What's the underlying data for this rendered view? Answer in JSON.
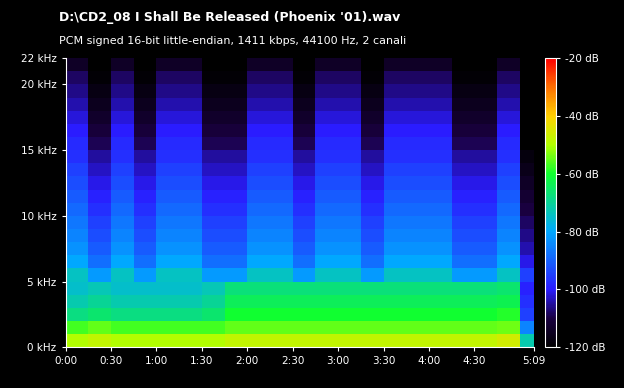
{
  "chart_data": {
    "type": "heatmap",
    "title": "D:\\CD2_08 I Shall Be Released (Phoenix '01).wav",
    "subtitle": "PCM signed 16-bit little-endian, 1411 kbps, 44100 Hz, 2 canali",
    "xlim": [
      0,
      309
    ],
    "xticks": [
      {
        "value": 0,
        "label": "0:00"
      },
      {
        "value": 30,
        "label": "0:30"
      },
      {
        "value": 60,
        "label": "1:00"
      },
      {
        "value": 90,
        "label": "1:30"
      },
      {
        "value": 120,
        "label": "2:00"
      },
      {
        "value": 150,
        "label": "2:30"
      },
      {
        "value": 180,
        "label": "3:00"
      },
      {
        "value": 210,
        "label": "3:30"
      },
      {
        "value": 240,
        "label": "4:00"
      },
      {
        "value": 270,
        "label": "4:30"
      },
      {
        "value": 309,
        "label": "5:09"
      }
    ],
    "ylim": [
      0,
      22
    ],
    "yticks": [
      {
        "value": 0,
        "label": "0 kHz"
      },
      {
        "value": 5,
        "label": "5 kHz"
      },
      {
        "value": 10,
        "label": "10 kHz"
      },
      {
        "value": 15,
        "label": "15 kHz"
      },
      {
        "value": 20,
        "label": "20 kHz"
      },
      {
        "value": 22,
        "label": "22 kHz"
      }
    ],
    "x_edges": [
      0,
      15,
      30,
      45,
      60,
      75,
      90,
      105,
      120,
      135,
      150,
      165,
      180,
      195,
      210,
      225,
      240,
      255,
      270,
      285,
      300,
      309
    ],
    "y_edges": [
      0,
      1,
      2,
      3,
      4,
      5,
      6,
      7,
      8,
      9,
      10,
      11,
      12,
      13,
      14,
      15,
      16,
      17,
      18,
      19,
      20,
      21,
      22
    ],
    "cells": [
      [
        -50,
        -48,
        -50,
        -50,
        -50,
        -50,
        -50,
        -48,
        -48,
        -48,
        -48,
        -48,
        -48,
        -48,
        -48,
        -48,
        -48,
        -48,
        -48,
        -46,
        -72
      ],
      [
        -57,
        -55,
        -57,
        -57,
        -57,
        -57,
        -57,
        -55,
        -55,
        -55,
        -55,
        -55,
        -55,
        -55,
        -55,
        -55,
        -55,
        -55,
        -55,
        -54,
        -85
      ],
      [
        -68,
        -66,
        -68,
        -68,
        -68,
        -68,
        -66,
        -60,
        -60,
        -60,
        -60,
        -60,
        -60,
        -60,
        -60,
        -60,
        -60,
        -60,
        -60,
        -59,
        -95
      ],
      [
        -72,
        -70,
        -72,
        -72,
        -72,
        -72,
        -70,
        -64,
        -64,
        -64,
        -64,
        -64,
        -64,
        -64,
        -64,
        -64,
        -64,
        -64,
        -64,
        -63,
        -97
      ],
      [
        -75,
        -73,
        -75,
        -75,
        -75,
        -75,
        -73,
        -67,
        -67,
        -67,
        -67,
        -67,
        -67,
        -67,
        -67,
        -67,
        -67,
        -67,
        -67,
        -66,
        -99
      ],
      [
        -74,
        -82,
        -74,
        -82,
        -74,
        -74,
        -82,
        -82,
        -74,
        -74,
        -82,
        -74,
        -74,
        -82,
        -74,
        -74,
        -74,
        -82,
        -82,
        -74,
        -95
      ],
      [
        -80,
        -88,
        -80,
        -88,
        -80,
        -80,
        -88,
        -88,
        -80,
        -80,
        -88,
        -80,
        -80,
        -88,
        -80,
        -80,
        -80,
        -88,
        -88,
        -80,
        -101
      ],
      [
        -83,
        -91,
        -83,
        -91,
        -83,
        -83,
        -91,
        -91,
        -83,
        -83,
        -91,
        -83,
        -83,
        -91,
        -83,
        -83,
        -83,
        -91,
        -91,
        -83,
        -104
      ],
      [
        -85,
        -93,
        -85,
        -93,
        -85,
        -85,
        -93,
        -93,
        -85,
        -85,
        -93,
        -85,
        -85,
        -93,
        -85,
        -85,
        -85,
        -93,
        -93,
        -85,
        -106
      ],
      [
        -87,
        -95,
        -87,
        -95,
        -87,
        -87,
        -95,
        -95,
        -87,
        -87,
        -95,
        -87,
        -87,
        -95,
        -87,
        -87,
        -87,
        -95,
        -95,
        -87,
        -108
      ],
      [
        -89,
        -97,
        -89,
        -97,
        -89,
        -89,
        -97,
        -97,
        -89,
        -89,
        -97,
        -89,
        -89,
        -97,
        -89,
        -89,
        -89,
        -97,
        -97,
        -89,
        -110
      ],
      [
        -91,
        -99,
        -91,
        -99,
        -91,
        -91,
        -99,
        -99,
        -91,
        -91,
        -99,
        -91,
        -91,
        -99,
        -91,
        -91,
        -91,
        -99,
        -99,
        -91,
        -112
      ],
      [
        -93,
        -101,
        -93,
        -101,
        -93,
        -93,
        -101,
        -101,
        -93,
        -93,
        -101,
        -93,
        -93,
        -101,
        -93,
        -93,
        -93,
        -101,
        -101,
        -93,
        -114
      ],
      [
        -95,
        -103,
        -95,
        -103,
        -95,
        -95,
        -103,
        -103,
        -95,
        -95,
        -103,
        -95,
        -95,
        -103,
        -95,
        -95,
        -95,
        -103,
        -103,
        -95,
        -116
      ],
      [
        -97,
        -105,
        -97,
        -105,
        -97,
        -97,
        -105,
        -105,
        -97,
        -97,
        -105,
        -97,
        -97,
        -105,
        -97,
        -97,
        -97,
        -105,
        -105,
        -97,
        -118
      ],
      [
        -98,
        -109,
        -98,
        -109,
        -98,
        -98,
        -109,
        -109,
        -98,
        -98,
        -109,
        -98,
        -98,
        -109,
        -98,
        -98,
        -98,
        -109,
        -109,
        -98,
        -120
      ],
      [
        -100,
        -111,
        -100,
        -111,
        -100,
        -100,
        -111,
        -111,
        -100,
        -100,
        -111,
        -100,
        -100,
        -111,
        -100,
        -100,
        -100,
        -111,
        -111,
        -100,
        -120
      ],
      [
        -102,
        -113,
        -102,
        -113,
        -102,
        -102,
        -113,
        -113,
        -102,
        -102,
        -113,
        -102,
        -102,
        -113,
        -102,
        -102,
        -102,
        -113,
        -113,
        -102,
        -120
      ],
      [
        -104,
        -115,
        -104,
        -115,
        -104,
        -104,
        -115,
        -115,
        -104,
        -104,
        -115,
        -104,
        -104,
        -115,
        -104,
        -104,
        -104,
        -115,
        -115,
        -104,
        -120
      ],
      [
        -106,
        -117,
        -106,
        -117,
        -106,
        -106,
        -117,
        -117,
        -106,
        -106,
        -117,
        -106,
        -106,
        -117,
        -106,
        -106,
        -106,
        -117,
        -117,
        -106,
        -120
      ],
      [
        -108,
        -119,
        -108,
        -119,
        -108,
        -108,
        -119,
        -119,
        -108,
        -108,
        -119,
        -108,
        -108,
        -119,
        -108,
        -108,
        -108,
        -119,
        -119,
        -108,
        -120
      ],
      [
        -114,
        -120,
        -114,
        -120,
        -114,
        -114,
        -120,
        -120,
        -114,
        -114,
        -120,
        -114,
        -114,
        -120,
        -114,
        -114,
        -114,
        -120,
        -120,
        -114,
        -120
      ]
    ],
    "colorbar_range": [
      -120,
      -20
    ],
    "colorbar_ticks": [
      {
        "value": -20,
        "label": "-20 dB"
      },
      {
        "value": -40,
        "label": "-40 dB"
      },
      {
        "value": -60,
        "label": "-60 dB"
      },
      {
        "value": -80,
        "label": "-80 dB"
      },
      {
        "value": -100,
        "label": "-100 dB"
      },
      {
        "value": -120,
        "label": "-120 dB"
      }
    ]
  }
}
